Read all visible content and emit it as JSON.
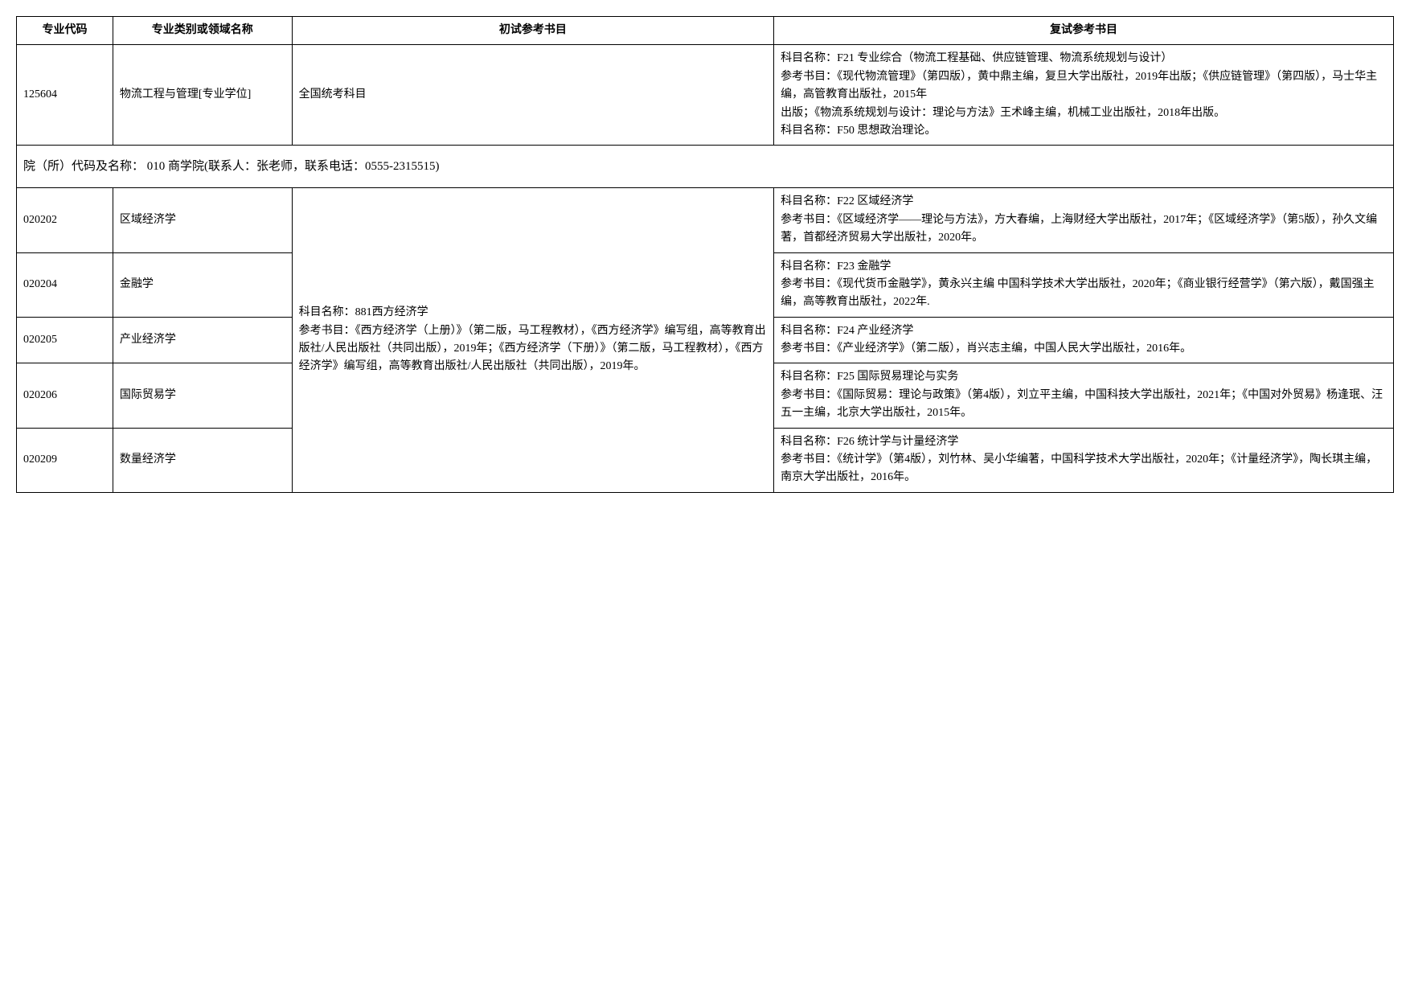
{
  "headers": {
    "code": "专业代码",
    "name": "专业类别或领域名称",
    "init": "初试参考书目",
    "retest": "复试参考书目"
  },
  "row_125604": {
    "code": "125604",
    "name": "物流工程与管理[专业学位]",
    "init": "全国统考科目",
    "retest": "科目名称：F21 专业综合（物流工程基础、供应链管理、物流系统规划与设计）\n参考书目：《现代物流管理》（第四版），黄中鼎主编，复旦大学出版社，2019年出版；《供应链管理》（第四版），马士华主编，高管教育出版社，2015年\n出版；《物流系统规划与设计：理论与方法》王术峰主编，机械工业出版社，2018年出版。\n科目名称：F50 思想政治理论。"
  },
  "section": "院（所）代码及名称： 010 商学院(联系人：张老师，联系电话：0555-2315515)",
  "shared_init": "科目名称：881西方经济学\n参考书目：《西方经济学（上册）》（第二版，马工程教材），《西方经济学》编写组，高等教育出版社/人民出版社（共同出版），2019年；《西方经济学（下册）》（第二版，马工程教材），《西方经济学》编写组，高等教育出版社/人民出版社（共同出版），2019年。",
  "rows": [
    {
      "code": "020202",
      "name": "区域经济学",
      "retest": "科目名称：F22 区域经济学\n参考书目：《区域经济学——理论与方法》，方大春编，上海财经大学出版社，2017年；《区域经济学》（第5版），孙久文编著，首都经济贸易大学出版社，2020年。"
    },
    {
      "code": "020204",
      "name": "金融学",
      "retest": "科目名称：F23 金融学\n参考书目：《现代货币金融学》，黄永兴主编 中国科学技术大学出版社，2020年；《商业银行经营学》（第六版），戴国强主编，高等教育出版社，2022年."
    },
    {
      "code": "020205",
      "name": "产业经济学",
      "retest": "科目名称：F24 产业经济学\n参考书目：《产业经济学》（第二版），肖兴志主编，中国人民大学出版社，2016年。"
    },
    {
      "code": "020206",
      "name": "国际贸易学",
      "retest": "科目名称：F25 国际贸易理论与实务\n参考书目：《国际贸易：理论与政策》（第4版），刘立平主编，中国科技大学出版社，2021年；《中国对外贸易》杨逢珉、汪五一主编，北京大学出版社，2015年。"
    },
    {
      "code": "020209",
      "name": "数量经济学",
      "retest": "科目名称：F26 统计学与计量经济学\n参考书目：《统计学》（第4版），刘竹林、吴小华编著，中国科学技术大学出版社，2020年；《计量经济学》，陶长琪主编，南京大学出版社，2016年。"
    }
  ]
}
